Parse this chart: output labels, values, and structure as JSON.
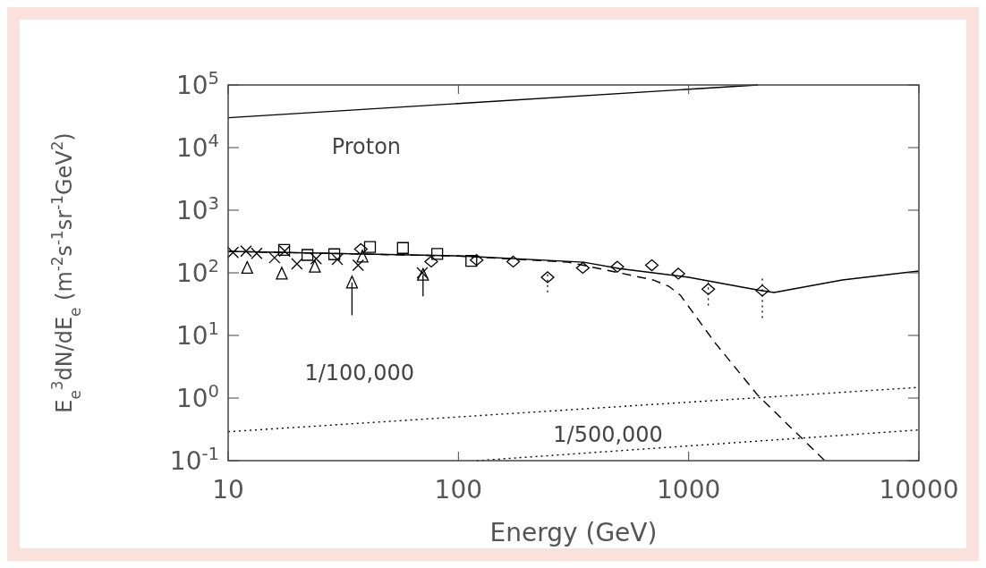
{
  "chart_data": {
    "type": "line",
    "xlabel": "Energy (GeV)",
    "ylabel": "E$_{e}$$^{3}$dN/dE$_{e}$ (m$^{-2}$s$^{-1}$sr$^{-1}$GeV$^{2}$)",
    "log": "xy",
    "xlim": [
      10,
      10000
    ],
    "ylim": [
      0.1,
      100000
    ],
    "xticks": [
      10,
      100,
      1000,
      10000
    ],
    "yticks": [
      {
        "value": 0.1,
        "label": "10$^{-1}$"
      },
      {
        "value": 1,
        "label": "10$^{0}$"
      },
      {
        "value": 10,
        "label": "10$^{1}$"
      },
      {
        "value": 100,
        "label": "10$^{2}$"
      },
      {
        "value": 1000,
        "label": "10$^{3}$"
      },
      {
        "value": 10000,
        "label": "10$^{4}$"
      },
      {
        "value": 100000,
        "label": "10$^{5}$"
      }
    ],
    "grid": false,
    "legend": false,
    "series": [
      {
        "name": "Proton",
        "line_style": "solid",
        "color": "#000000",
        "x": [
          10,
          2000
        ],
        "values": [
          30000,
          100000
        ]
      },
      {
        "line_style": "solid",
        "color": "#000000",
        "x": [
          10,
          100,
          350,
          500,
          1000,
          2000,
          2350,
          4650,
          10000
        ],
        "values": [
          220,
          187,
          148,
          117,
          85,
          53,
          48.5,
          77,
          107
        ]
      },
      {
        "line_style": "dashed",
        "color": "#000000",
        "x": [
          10,
          100,
          300,
          500,
          700,
          820,
          920,
          1300,
          2000,
          3900
        ],
        "values": [
          220,
          185,
          148,
          100,
          77,
          61,
          44,
          7.7,
          1.1,
          0.1
        ]
      },
      {
        "name": "1/100,000",
        "line_style": "dotted",
        "color": "#000000",
        "x": [
          10,
          10000
        ],
        "values": [
          0.29,
          1.48
        ]
      },
      {
        "name": "1/500,000",
        "line_style": "dotted",
        "color": "#000000",
        "x": [
          120,
          10000
        ],
        "values": [
          0.1,
          0.31
        ]
      },
      {
        "type": "scatter",
        "marker": "cross",
        "color": "#000000",
        "x": [
          10.5,
          11.96,
          13.3,
          15.9,
          17.6,
          19.9,
          24.1,
          29.8,
          36.7,
          69.7
        ],
        "values": [
          211,
          222,
          204,
          174,
          222,
          139,
          168,
          164,
          132,
          100
        ]
      },
      {
        "type": "scatter",
        "marker": "square",
        "color": "#000000",
        "x": [
          17.5,
          22.1,
          28.9,
          41.3,
          57.4,
          80.9,
          113.8
        ],
        "values": [
          233,
          193,
          198,
          259,
          249,
          200,
          155
        ]
      },
      {
        "type": "scatter",
        "marker": "triangle",
        "color": "#000000",
        "x": [
          12.1,
          17.1,
          23.8,
          34.5,
          38.3,
          70.2
        ],
        "values": [
          120,
          97,
          125,
          70,
          182,
          93
        ],
        "errors": [
          null,
          null,
          null,
          [
            21,
            70
          ],
          null,
          [
            42,
            93
          ]
        ]
      },
      {
        "type": "scatter",
        "marker": "diamond",
        "color": "#000000",
        "line_style": "dotted",
        "x": [
          37.7,
          76.2,
          120,
          173,
          244,
          347,
          490,
          692,
          902,
          1217,
          2090
        ],
        "values": [
          240,
          151,
          160,
          151,
          85,
          120,
          125,
          132,
          97,
          55,
          52
        ],
        "errors": [
          null,
          null,
          null,
          null,
          [
            49,
            107
          ],
          null,
          null,
          null,
          null,
          [
            30,
            79
          ],
          [
            19,
            85
          ]
        ]
      }
    ]
  }
}
